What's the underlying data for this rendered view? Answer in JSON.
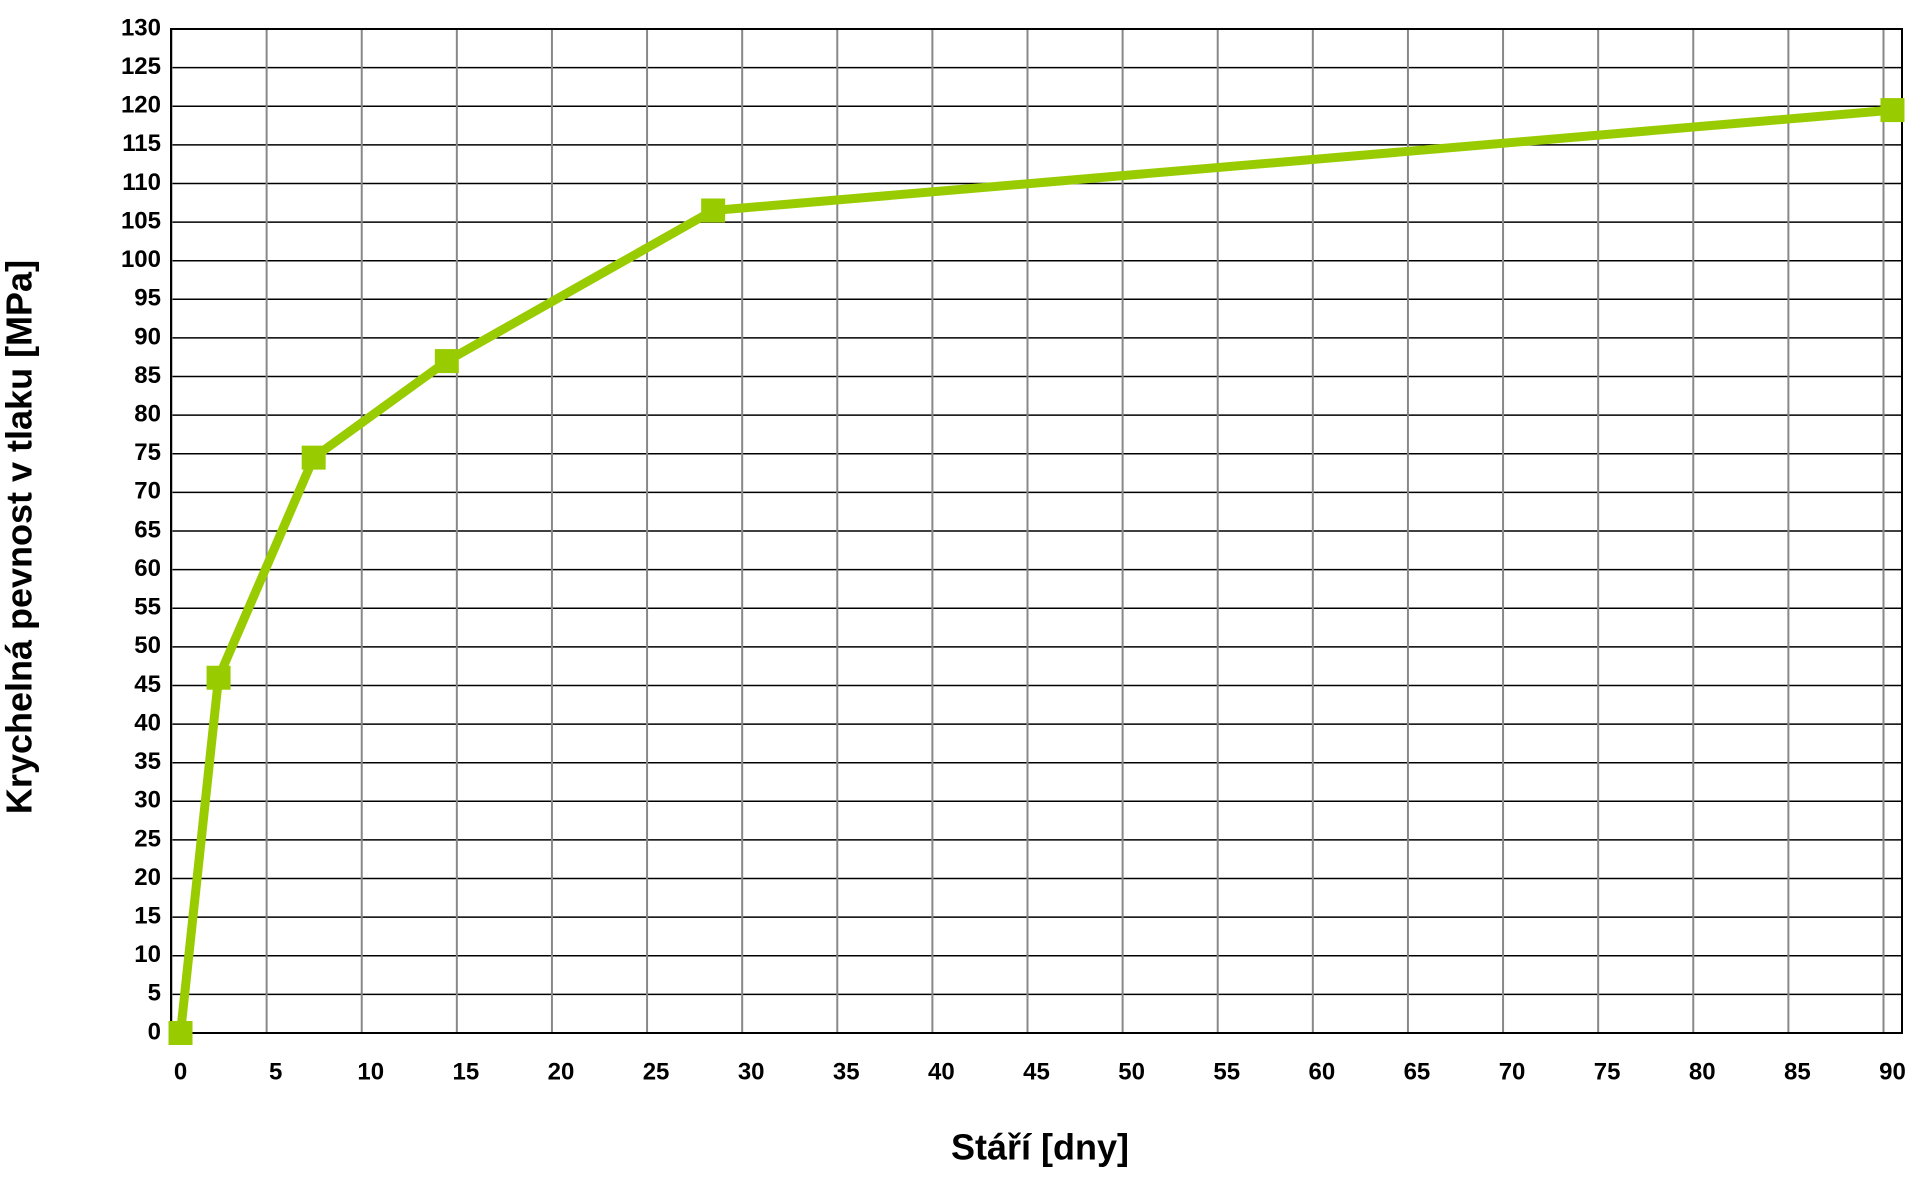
{
  "chart_data": {
    "type": "line",
    "x_label": "Stáří [dny]",
    "y_label": "Krychelná pevnost v tlaku [MPa]",
    "x": [
      0,
      2,
      7,
      14,
      28,
      90
    ],
    "series": [
      {
        "color": "#99cc00",
        "values": [
          0,
          46,
          74.5,
          87,
          106.5,
          119.5
        ]
      }
    ],
    "xlim": [
      -0.5,
      90.5
    ],
    "xticks": [
      0,
      5,
      10,
      15,
      20,
      25,
      30,
      35,
      40,
      45,
      50,
      55,
      60,
      65,
      70,
      75,
      80,
      85,
      90
    ],
    "ylim": [
      0,
      130
    ],
    "yticks": [
      0,
      5,
      10,
      15,
      20,
      25,
      30,
      35,
      40,
      45,
      50,
      55,
      60,
      65,
      70,
      75,
      80,
      85,
      90,
      95,
      100,
      105,
      110,
      115,
      120,
      125,
      130
    ],
    "grid": true
  }
}
